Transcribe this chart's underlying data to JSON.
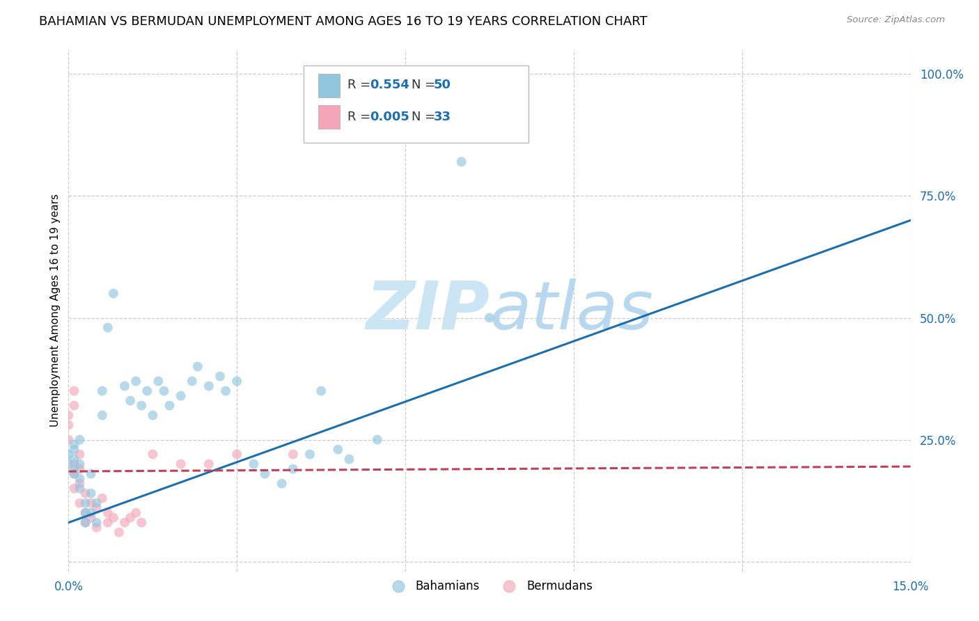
{
  "title": "BAHAMIAN VS BERMUDAN UNEMPLOYMENT AMONG AGES 16 TO 19 YEARS CORRELATION CHART",
  "source": "Source: ZipAtlas.com",
  "ylabel": "Unemployment Among Ages 16 to 19 years",
  "xlim": [
    0.0,
    0.15
  ],
  "ylim": [
    -0.02,
    1.05
  ],
  "yticks_right": [
    0.0,
    0.25,
    0.5,
    0.75,
    1.0
  ],
  "yticklabels_right": [
    "",
    "25.0%",
    "50.0%",
    "75.0%",
    "100.0%"
  ],
  "blue_scatter_x": [
    0.0,
    0.0,
    0.001,
    0.001,
    0.001,
    0.001,
    0.001,
    0.002,
    0.002,
    0.002,
    0.002,
    0.003,
    0.003,
    0.003,
    0.004,
    0.004,
    0.004,
    0.005,
    0.005,
    0.006,
    0.006,
    0.007,
    0.008,
    0.01,
    0.011,
    0.012,
    0.013,
    0.014,
    0.015,
    0.016,
    0.017,
    0.018,
    0.02,
    0.022,
    0.023,
    0.025,
    0.027,
    0.028,
    0.03,
    0.033,
    0.035,
    0.038,
    0.04,
    0.043,
    0.045,
    0.048,
    0.05,
    0.055,
    0.07,
    0.075
  ],
  "blue_scatter_y": [
    0.2,
    0.22,
    0.18,
    0.24,
    0.21,
    0.19,
    0.23,
    0.2,
    0.17,
    0.25,
    0.15,
    0.1,
    0.08,
    0.12,
    0.14,
    0.18,
    0.1,
    0.12,
    0.08,
    0.3,
    0.35,
    0.48,
    0.55,
    0.36,
    0.33,
    0.37,
    0.32,
    0.35,
    0.3,
    0.37,
    0.35,
    0.32,
    0.34,
    0.37,
    0.4,
    0.36,
    0.38,
    0.35,
    0.37,
    0.2,
    0.18,
    0.16,
    0.19,
    0.22,
    0.35,
    0.23,
    0.21,
    0.25,
    0.82,
    0.5
  ],
  "pink_scatter_x": [
    0.0,
    0.0,
    0.0,
    0.001,
    0.001,
    0.001,
    0.001,
    0.001,
    0.002,
    0.002,
    0.002,
    0.002,
    0.003,
    0.003,
    0.003,
    0.004,
    0.004,
    0.005,
    0.005,
    0.006,
    0.007,
    0.007,
    0.008,
    0.009,
    0.01,
    0.011,
    0.012,
    0.013,
    0.015,
    0.02,
    0.025,
    0.03,
    0.04
  ],
  "pink_scatter_y": [
    0.3,
    0.28,
    0.25,
    0.35,
    0.32,
    0.2,
    0.18,
    0.15,
    0.22,
    0.19,
    0.16,
    0.12,
    0.14,
    0.1,
    0.08,
    0.12,
    0.09,
    0.11,
    0.07,
    0.13,
    0.08,
    0.1,
    0.09,
    0.06,
    0.08,
    0.09,
    0.1,
    0.08,
    0.22,
    0.2,
    0.2,
    0.22,
    0.22
  ],
  "blue_line_x": [
    0.0,
    0.15
  ],
  "blue_line_y": [
    0.08,
    0.7
  ],
  "pink_line_x": [
    0.0,
    0.15
  ],
  "pink_line_y": [
    0.185,
    0.195
  ],
  "blue_color": "#92c5de",
  "pink_color": "#f4a6b8",
  "blue_line_color": "#1a6faf",
  "pink_line_color": "#c0405a",
  "scatter_alpha": 0.65,
  "scatter_size": 100,
  "legend_label1": "Bahamians",
  "legend_label2": "Bermudans",
  "grid_color": "#cccccc",
  "background_color": "#ffffff",
  "watermark_color": "#cce5f5",
  "title_fontsize": 13,
  "axis_label_fontsize": 11,
  "tick_fontsize": 12
}
